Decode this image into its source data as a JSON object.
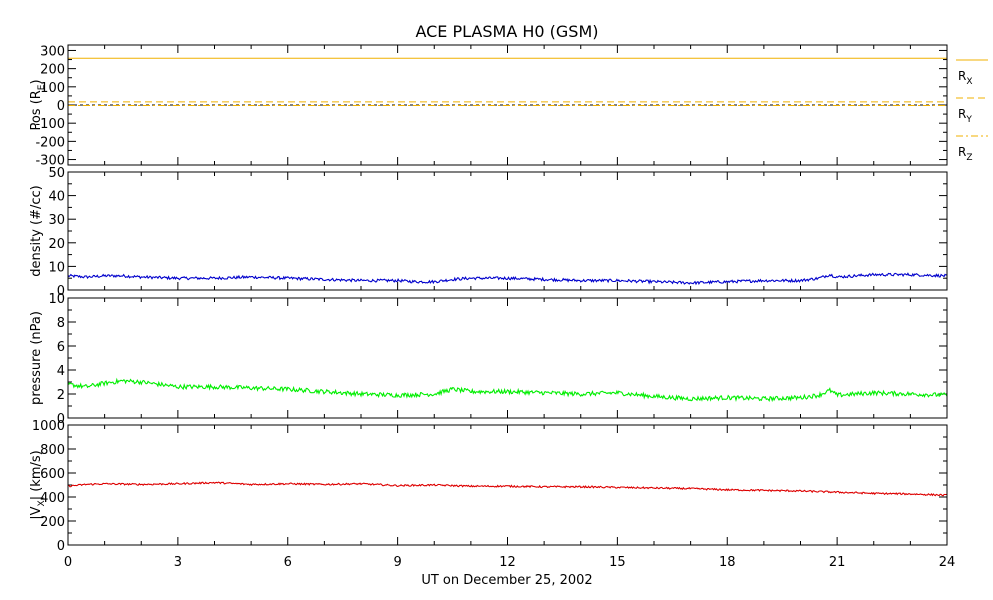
{
  "chart_data": {
    "type": "line",
    "title": "ACE PLASMA H0 (GSM)",
    "xlabel": "UT on December 25, 2002",
    "xlim": [
      0,
      24
    ],
    "xticks": [
      0,
      3,
      6,
      9,
      12,
      15,
      18,
      21,
      24
    ],
    "panels": [
      {
        "key": "pos",
        "ylabel_main": "Pos (R",
        "ylabel_sub": "E",
        "ylabel_tail": ")",
        "ylim": [
          -330,
          330
        ],
        "yticks": [
          -300,
          -200,
          -100,
          0,
          100,
          200,
          300
        ],
        "zero_line": true,
        "series": [
          {
            "name": "RX",
            "name_main": "R",
            "name_sub": "X",
            "color": "#f0b000",
            "dash": "solid",
            "x": [
              0,
              24
            ],
            "y": [
              257,
              257
            ]
          },
          {
            "name": "RY",
            "name_main": "R",
            "name_sub": "Y",
            "color": "#f0b000",
            "dash": "dash",
            "x": [
              0,
              24
            ],
            "y": [
              17,
              17
            ]
          },
          {
            "name": "RZ",
            "name_main": "R",
            "name_sub": "Z",
            "color": "#f0b000",
            "dash": "dashdot",
            "x": [
              0,
              24
            ],
            "y": [
              -3,
              -3
            ]
          }
        ]
      },
      {
        "key": "density",
        "ylabel_main": "density (#/cc)",
        "ylim": [
          0,
          50
        ],
        "yticks": [
          0,
          10,
          20,
          30,
          40,
          50
        ],
        "series": [
          {
            "name": "density",
            "color": "#0000cc",
            "noise": 0.6,
            "x": [
              0,
              0.5,
              1,
              1.5,
              2,
              3,
              4,
              5,
              6,
              7,
              8,
              9,
              9.5,
              10,
              10.5,
              11,
              12,
              13,
              14,
              15,
              16,
              17,
              18,
              19,
              20,
              20.5,
              20.8,
              21,
              22,
              23,
              24
            ],
            "y": [
              6,
              5.5,
              6,
              6,
              5.5,
              5,
              5,
              5.5,
              5,
              4.5,
              4,
              4,
              3.5,
              3.5,
              4.5,
              5,
              5,
              4.5,
              4,
              4,
              3.5,
              3,
              3.5,
              4,
              4,
              5,
              6.5,
              5.5,
              6.5,
              6.5,
              6
            ]
          }
        ]
      },
      {
        "key": "pressure",
        "ylabel_main": "pressure (nPa)",
        "ylim": [
          0,
          10
        ],
        "yticks": [
          0,
          2,
          4,
          6,
          8,
          10
        ],
        "series": [
          {
            "name": "pressure",
            "color": "#00ee00",
            "noise": 0.18,
            "x": [
              0,
              0.5,
              1,
              1.5,
              2,
              3,
              4,
              5,
              6,
              7,
              8,
              9,
              10,
              10.5,
              11,
              12,
              13,
              14,
              15,
              16,
              17,
              18,
              19,
              20,
              20.5,
              20.8,
              21,
              22,
              23,
              24
            ],
            "y": [
              2.8,
              2.6,
              2.9,
              3.1,
              3.0,
              2.6,
              2.6,
              2.5,
              2.4,
              2.2,
              2.0,
              1.9,
              2.0,
              2.4,
              2.2,
              2.2,
              2.1,
              2.0,
              2.1,
              1.8,
              1.6,
              1.7,
              1.6,
              1.7,
              1.9,
              2.3,
              1.9,
              2.1,
              2.0,
              1.9
            ]
          }
        ]
      },
      {
        "key": "vx",
        "ylabel_main": "|V",
        "ylabel_sub": "X",
        "ylabel_tail": "| (km/s)",
        "ylim": [
          0,
          1000
        ],
        "yticks": [
          0,
          200,
          400,
          600,
          800,
          1000
        ],
        "series": [
          {
            "name": "Vx",
            "color": "#dd0000",
            "noise": 7,
            "x": [
              0,
              0.5,
              1,
              2,
              3,
              4,
              5,
              6,
              7,
              8,
              9,
              10,
              11,
              12,
              13,
              14,
              15,
              16,
              17,
              18,
              19,
              20,
              21,
              22,
              23,
              24
            ],
            "y": [
              490,
              505,
              510,
              505,
              510,
              520,
              505,
              510,
              505,
              510,
              495,
              500,
              490,
              490,
              485,
              485,
              480,
              475,
              470,
              460,
              455,
              450,
              440,
              430,
              425,
              415
            ]
          }
        ]
      }
    ]
  }
}
